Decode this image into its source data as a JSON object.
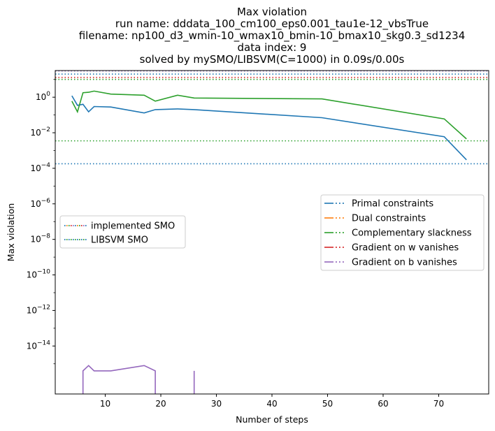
{
  "chart_data": {
    "type": "line",
    "title_lines": [
      "Max violation",
      "run name: dddata_100_cm100_eps0.001_tau1e-12_vbsTrue",
      "filename: np100_d3_wmin-10_wmax10_bmin-10_bmax10_skg0.3_sd1234",
      "data index: 9",
      "solved by mySMO/LIBSVM(C=1000) in 0.09s/0.00s"
    ],
    "xlabel": "Number of steps",
    "ylabel": "Max violation",
    "yscale": "log",
    "xlim": [
      1,
      79
    ],
    "ylim_exp": [
      -16.7,
      1.5
    ],
    "x_ticks": [
      10,
      20,
      30,
      40,
      50,
      60,
      70
    ],
    "y_ticks": [
      {
        "exp": 0,
        "label": "10^0"
      },
      {
        "exp": -2,
        "label": "10^-2"
      },
      {
        "exp": -4,
        "label": "10^-4"
      },
      {
        "exp": -6,
        "label": "10^-6"
      },
      {
        "exp": -8,
        "label": "10^-8"
      },
      {
        "exp": -10,
        "label": "10^-10"
      },
      {
        "exp": -12,
        "label": "10^-12"
      },
      {
        "exp": -14,
        "label": "10^-14"
      }
    ],
    "series": [
      {
        "name": "Primal constraints",
        "color": "#1f77b4",
        "x": [
          4,
          5,
          6,
          7,
          8,
          11,
          17,
          19,
          23,
          26,
          49,
          71,
          75
        ],
        "y": [
          1.2,
          0.35,
          0.4,
          0.15,
          0.3,
          0.28,
          0.13,
          0.2,
          0.22,
          0.2,
          0.07,
          0.006,
          0.0003
        ]
      },
      {
        "name": "Dual constraints",
        "color": "#ff7f0e",
        "x": [],
        "y": []
      },
      {
        "name": "Complementary slackness",
        "color": "#2ca02c",
        "x": [
          4,
          5,
          6,
          7,
          8,
          11,
          17,
          19,
          23,
          26,
          49,
          71,
          75
        ],
        "y": [
          0.6,
          0.15,
          1.8,
          1.9,
          2.2,
          1.5,
          1.3,
          0.6,
          1.3,
          0.9,
          0.8,
          0.06,
          0.0045
        ]
      },
      {
        "name": "Gradient on w vanishes",
        "color": "#d62728",
        "x": [],
        "y": []
      },
      {
        "name": "Gradient on b vanishes",
        "color": "#9467bd",
        "segments": [
          {
            "x": [
              6,
              6,
              7,
              8,
              11,
              17,
              19,
              19
            ],
            "exp": [
              -16.7,
              -15.4,
              -15.1,
              -15.4,
              -15.4,
              -15.1,
              -15.4,
              -16.7
            ]
          },
          {
            "x": [
              26,
              26
            ],
            "exp": [
              -16.7,
              -15.4
            ]
          }
        ]
      }
    ],
    "hlines_smo": [
      {
        "color": "#1f77b4",
        "y": 20
      },
      {
        "color": "#ff7f0e",
        "y": 10
      },
      {
        "color": "#2ca02c",
        "y": 10
      },
      {
        "color": "#d62728",
        "y": 13
      },
      {
        "color": "#9467bd",
        "y": 30
      }
    ],
    "hlines_libsvm": [
      {
        "color": "#2ca02c",
        "y": 0.0035
      },
      {
        "color": "#1f77b4",
        "y": 0.00018
      }
    ],
    "legend_left": [
      {
        "label": "implemented SMO",
        "colors": [
          "#1f77b4",
          "#ff7f0e",
          "#2ca02c",
          "#d62728",
          "#9467bd"
        ]
      },
      {
        "label": "LIBSVM SMO",
        "colors": [
          "#1f77b4",
          "#2ca02c"
        ]
      }
    ],
    "legend_left_placement": "center-left",
    "legend_right_placement": "center-right",
    "grid": false
  }
}
